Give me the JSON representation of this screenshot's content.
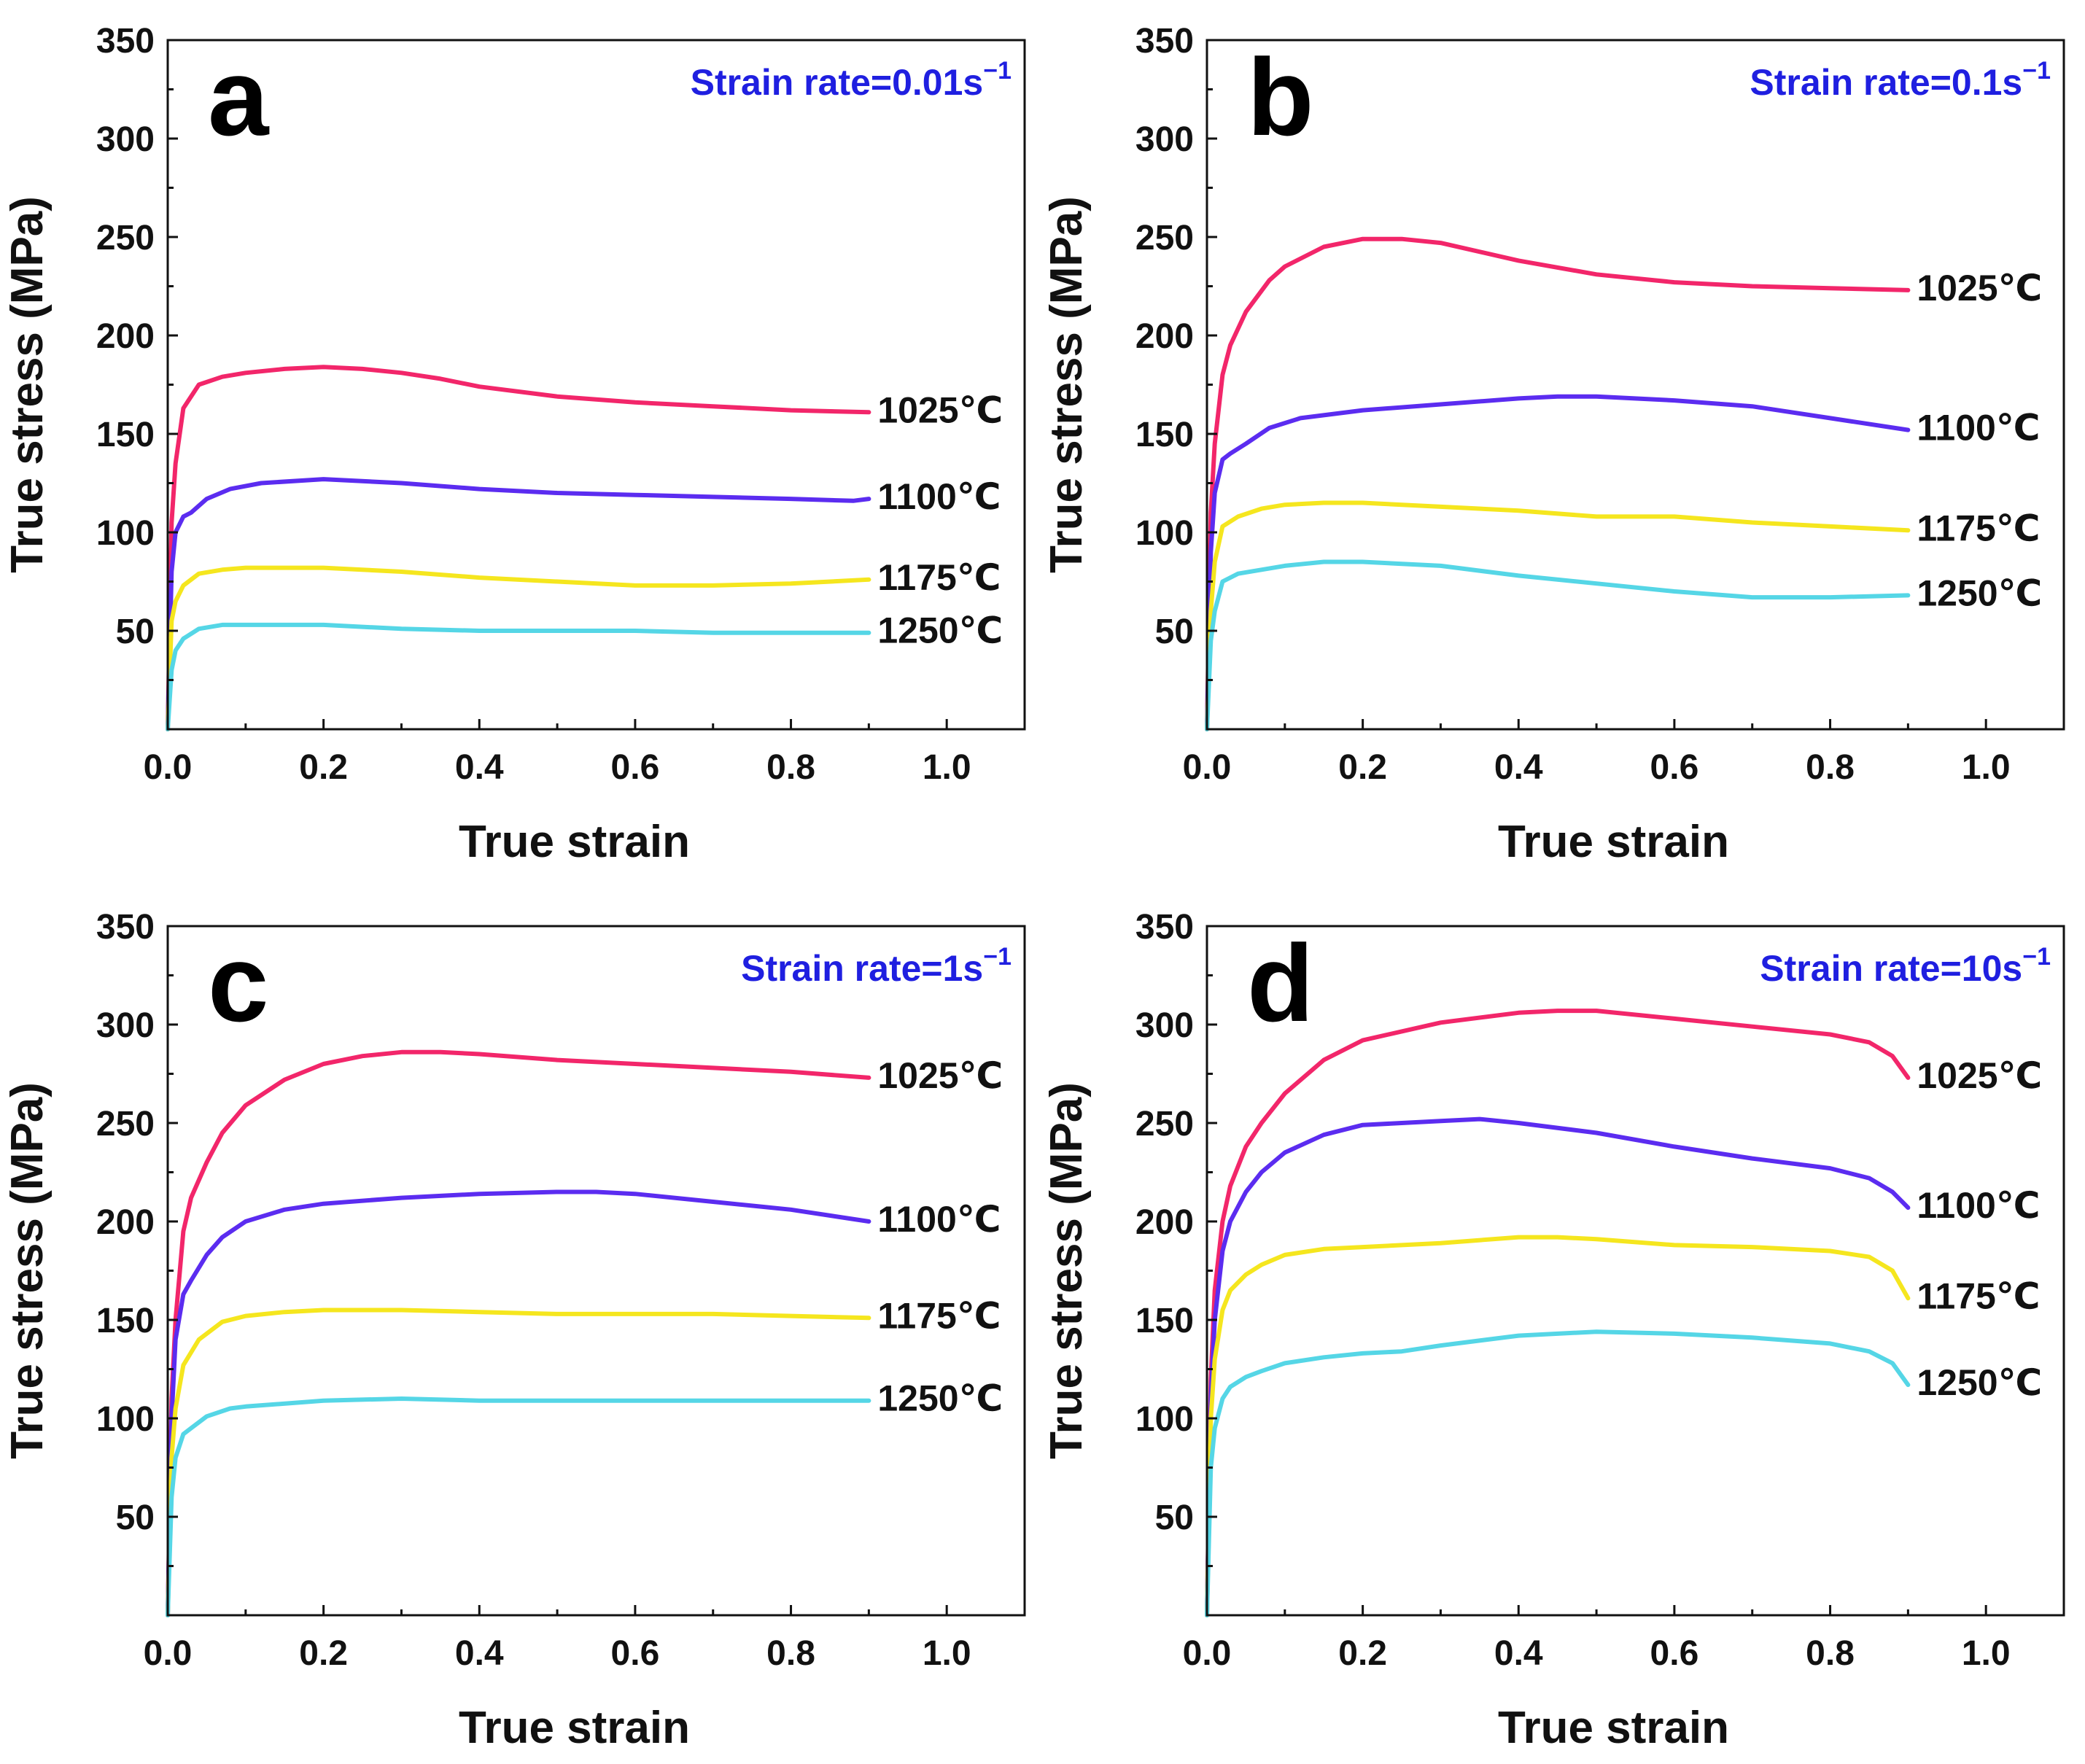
{
  "figure": {
    "description_colors": {
      "1025": "#f2266a",
      "1100": "#5b2cf0",
      "1175": "#f5e61e",
      "1250": "#55d6e6",
      "annotation": "#1f1fe0"
    }
  },
  "chart_data": [
    {
      "type": "line",
      "panel_label": "a",
      "annotation": "Strain rate=0.01s",
      "annotation_sup": "−1",
      "xlabel": "True strain",
      "ylabel": "True stress (MPa)",
      "xlim": [
        0.0,
        1.1
      ],
      "ylim": [
        0,
        350
      ],
      "xticks": [
        "0.0",
        "0.2",
        "0.4",
        "0.6",
        "0.8",
        "1.0"
      ],
      "yticks": [
        "50",
        "100",
        "150",
        "200",
        "250",
        "300",
        "350"
      ],
      "series": [
        {
          "name": "1025℃",
          "color": "#f2266a",
          "x": [
            0,
            0.005,
            0.01,
            0.02,
            0.04,
            0.07,
            0.1,
            0.15,
            0.2,
            0.25,
            0.3,
            0.35,
            0.4,
            0.5,
            0.6,
            0.7,
            0.8,
            0.9
          ],
          "y": [
            0,
            105,
            135,
            163,
            175,
            179,
            181,
            183,
            184,
            183,
            181,
            178,
            174,
            169,
            166,
            164,
            162,
            161
          ]
        },
        {
          "name": "1100℃",
          "color": "#5b2cf0",
          "x": [
            0,
            0.005,
            0.01,
            0.02,
            0.03,
            0.05,
            0.08,
            0.12,
            0.2,
            0.3,
            0.4,
            0.5,
            0.6,
            0.7,
            0.8,
            0.88,
            0.9
          ],
          "y": [
            0,
            80,
            100,
            108,
            110,
            117,
            122,
            125,
            127,
            125,
            122,
            120,
            119,
            118,
            117,
            116,
            117
          ]
        },
        {
          "name": "1175℃",
          "color": "#f5e61e",
          "x": [
            0,
            0.005,
            0.01,
            0.02,
            0.04,
            0.07,
            0.1,
            0.2,
            0.3,
            0.4,
            0.5,
            0.6,
            0.7,
            0.8,
            0.9
          ],
          "y": [
            0,
            55,
            65,
            73,
            79,
            81,
            82,
            82,
            80,
            77,
            75,
            73,
            73,
            74,
            76
          ]
        },
        {
          "name": "1250℃",
          "color": "#55d6e6",
          "x": [
            0,
            0.005,
            0.01,
            0.02,
            0.04,
            0.07,
            0.1,
            0.2,
            0.3,
            0.4,
            0.5,
            0.6,
            0.7,
            0.8,
            0.9
          ],
          "y": [
            0,
            30,
            40,
            46,
            51,
            53,
            53,
            53,
            51,
            50,
            50,
            50,
            49,
            49,
            49
          ]
        }
      ]
    },
    {
      "type": "line",
      "panel_label": "b",
      "annotation": "Strain rate=0.1s",
      "annotation_sup": "−1",
      "xlabel": "True strain",
      "ylabel": "True stress (MPa)",
      "xlim": [
        0.0,
        1.1
      ],
      "ylim": [
        0,
        350
      ],
      "xticks": [
        "0.0",
        "0.2",
        "0.4",
        "0.6",
        "0.8",
        "1.0"
      ],
      "yticks": [
        "50",
        "100",
        "150",
        "200",
        "250",
        "300",
        "350"
      ],
      "series": [
        {
          "name": "1025℃",
          "color": "#f2266a",
          "x": [
            0,
            0.005,
            0.01,
            0.02,
            0.03,
            0.05,
            0.08,
            0.1,
            0.15,
            0.2,
            0.25,
            0.3,
            0.4,
            0.5,
            0.6,
            0.7,
            0.8,
            0.9
          ],
          "y": [
            0,
            110,
            145,
            180,
            195,
            212,
            228,
            235,
            245,
            249,
            249,
            247,
            238,
            231,
            227,
            225,
            224,
            223
          ]
        },
        {
          "name": "1100℃",
          "color": "#5b2cf0",
          "x": [
            0,
            0.005,
            0.01,
            0.02,
            0.03,
            0.05,
            0.08,
            0.12,
            0.2,
            0.3,
            0.4,
            0.45,
            0.5,
            0.6,
            0.7,
            0.8,
            0.9
          ],
          "y": [
            0,
            90,
            120,
            137,
            140,
            145,
            153,
            158,
            162,
            165,
            168,
            169,
            169,
            167,
            164,
            158,
            152
          ]
        },
        {
          "name": "1175℃",
          "color": "#f5e61e",
          "x": [
            0,
            0.005,
            0.01,
            0.02,
            0.04,
            0.07,
            0.1,
            0.15,
            0.2,
            0.3,
            0.4,
            0.5,
            0.6,
            0.7,
            0.8,
            0.9
          ],
          "y": [
            0,
            60,
            85,
            103,
            108,
            112,
            114,
            115,
            115,
            113,
            111,
            108,
            108,
            105,
            103,
            101
          ]
        },
        {
          "name": "1250℃",
          "color": "#55d6e6",
          "x": [
            0,
            0.005,
            0.01,
            0.02,
            0.04,
            0.07,
            0.1,
            0.15,
            0.2,
            0.3,
            0.4,
            0.5,
            0.6,
            0.7,
            0.8,
            0.9
          ],
          "y": [
            0,
            45,
            60,
            75,
            79,
            81,
            83,
            85,
            85,
            83,
            78,
            74,
            70,
            67,
            67,
            68
          ]
        }
      ]
    },
    {
      "type": "line",
      "panel_label": "c",
      "annotation": "Strain rate=1s",
      "annotation_sup": "−1",
      "xlabel": "True strain",
      "ylabel": "True stress (MPa)",
      "xlim": [
        0.0,
        1.1
      ],
      "ylim": [
        0,
        350
      ],
      "xticks": [
        "0.0",
        "0.2",
        "0.4",
        "0.6",
        "0.8",
        "1.0"
      ],
      "yticks": [
        "50",
        "100",
        "150",
        "200",
        "250",
        "300",
        "350"
      ],
      "series": [
        {
          "name": "1025℃",
          "color": "#f2266a",
          "x": [
            0,
            0.005,
            0.01,
            0.02,
            0.03,
            0.05,
            0.07,
            0.1,
            0.15,
            0.2,
            0.25,
            0.3,
            0.35,
            0.4,
            0.5,
            0.6,
            0.7,
            0.8,
            0.9
          ],
          "y": [
            0,
            110,
            150,
            195,
            212,
            230,
            245,
            259,
            272,
            280,
            284,
            286,
            286,
            285,
            282,
            280,
            278,
            276,
            273
          ]
        },
        {
          "name": "1100℃",
          "color": "#5b2cf0",
          "x": [
            0,
            0.005,
            0.01,
            0.02,
            0.03,
            0.05,
            0.07,
            0.1,
            0.15,
            0.2,
            0.3,
            0.4,
            0.5,
            0.55,
            0.6,
            0.7,
            0.8,
            0.9
          ],
          "y": [
            0,
            100,
            140,
            163,
            170,
            183,
            192,
            200,
            206,
            209,
            212,
            214,
            215,
            215,
            214,
            210,
            206,
            200
          ]
        },
        {
          "name": "1175℃",
          "color": "#f5e61e",
          "x": [
            0,
            0.005,
            0.01,
            0.02,
            0.04,
            0.07,
            0.1,
            0.15,
            0.2,
            0.3,
            0.4,
            0.5,
            0.6,
            0.7,
            0.8,
            0.9
          ],
          "y": [
            0,
            80,
            105,
            127,
            140,
            149,
            152,
            154,
            155,
            155,
            154,
            153,
            153,
            153,
            152,
            151
          ]
        },
        {
          "name": "1250℃",
          "color": "#55d6e6",
          "x": [
            0,
            0.005,
            0.01,
            0.02,
            0.03,
            0.05,
            0.08,
            0.1,
            0.2,
            0.3,
            0.4,
            0.5,
            0.6,
            0.7,
            0.8,
            0.9
          ],
          "y": [
            0,
            60,
            80,
            92,
            95,
            101,
            105,
            106,
            109,
            110,
            109,
            109,
            109,
            109,
            109,
            109
          ]
        }
      ]
    },
    {
      "type": "line",
      "panel_label": "d",
      "annotation": "Strain rate=10s",
      "annotation_sup": "−1",
      "xlabel": "True strain",
      "ylabel": "True stress (MPa)",
      "xlim": [
        0.0,
        1.1
      ],
      "ylim": [
        0,
        350
      ],
      "xticks": [
        "0.0",
        "0.2",
        "0.4",
        "0.6",
        "0.8",
        "1.0"
      ],
      "yticks": [
        "50",
        "100",
        "150",
        "200",
        "250",
        "300",
        "350"
      ],
      "series": [
        {
          "name": "1025℃",
          "color": "#f2266a",
          "x": [
            0,
            0.005,
            0.01,
            0.02,
            0.03,
            0.05,
            0.07,
            0.1,
            0.15,
            0.2,
            0.3,
            0.4,
            0.45,
            0.5,
            0.6,
            0.7,
            0.8,
            0.85,
            0.88,
            0.9
          ],
          "y": [
            0,
            120,
            165,
            200,
            218,
            238,
            250,
            265,
            282,
            292,
            301,
            306,
            307,
            307,
            303,
            299,
            295,
            291,
            284,
            273
          ]
        },
        {
          "name": "1100℃",
          "color": "#5b2cf0",
          "x": [
            0,
            0.005,
            0.01,
            0.02,
            0.03,
            0.05,
            0.07,
            0.1,
            0.15,
            0.2,
            0.3,
            0.35,
            0.4,
            0.5,
            0.6,
            0.7,
            0.8,
            0.85,
            0.88,
            0.9
          ],
          "y": [
            0,
            110,
            150,
            185,
            200,
            215,
            225,
            235,
            244,
            249,
            251,
            252,
            250,
            245,
            238,
            232,
            227,
            222,
            215,
            207
          ]
        },
        {
          "name": "1175℃",
          "color": "#f5e61e",
          "x": [
            0,
            0.005,
            0.01,
            0.02,
            0.03,
            0.05,
            0.07,
            0.1,
            0.15,
            0.2,
            0.3,
            0.4,
            0.45,
            0.5,
            0.6,
            0.7,
            0.8,
            0.85,
            0.88,
            0.9
          ],
          "y": [
            0,
            100,
            130,
            155,
            165,
            173,
            178,
            183,
            186,
            187,
            189,
            192,
            192,
            191,
            188,
            187,
            185,
            182,
            175,
            161
          ]
        },
        {
          "name": "1250℃",
          "color": "#55d6e6",
          "x": [
            0,
            0.005,
            0.01,
            0.02,
            0.03,
            0.05,
            0.07,
            0.1,
            0.15,
            0.2,
            0.25,
            0.3,
            0.4,
            0.5,
            0.6,
            0.7,
            0.8,
            0.85,
            0.88,
            0.9
          ],
          "y": [
            0,
            75,
            95,
            110,
            116,
            121,
            124,
            128,
            131,
            133,
            134,
            137,
            142,
            144,
            143,
            141,
            138,
            134,
            128,
            117
          ]
        }
      ]
    }
  ]
}
